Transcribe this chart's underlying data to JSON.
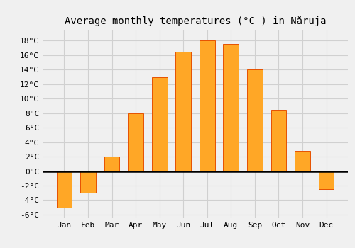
{
  "title": "Average monthly temperatures (°C ) in Năruja",
  "months": [
    "Jan",
    "Feb",
    "Mar",
    "Apr",
    "May",
    "Jun",
    "Jul",
    "Aug",
    "Sep",
    "Oct",
    "Nov",
    "Dec"
  ],
  "values": [
    -5.0,
    -3.0,
    2.0,
    8.0,
    13.0,
    16.5,
    18.0,
    17.5,
    14.0,
    8.5,
    2.8,
    -2.5
  ],
  "bar_color": "#FFA726",
  "bar_edge_color": "#E65100",
  "ylim": [
    -6.5,
    19.5
  ],
  "yticks": [
    -6,
    -4,
    -2,
    0,
    2,
    4,
    6,
    8,
    10,
    12,
    14,
    16,
    18
  ],
  "ytick_labels": [
    "-6°C",
    "-4°C",
    "-2°C",
    "0°C",
    "2°C",
    "4°C",
    "6°C",
    "8°C",
    "10°C",
    "12°C",
    "14°C",
    "16°C",
    "18°C"
  ],
  "background_color": "#f0f0f0",
  "grid_color": "#d0d0d0",
  "zero_line_color": "#000000",
  "title_fontsize": 10,
  "tick_fontsize": 8,
  "font_family": "monospace"
}
